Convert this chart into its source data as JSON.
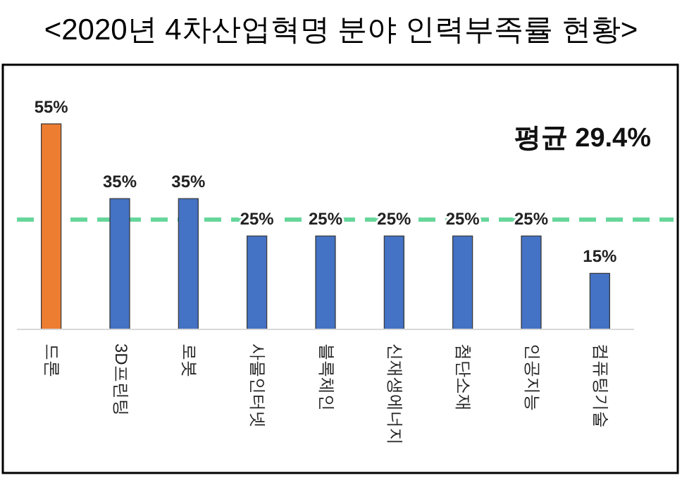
{
  "chart_data": {
    "type": "bar",
    "title": "<2020년 4차산업혁명 분야 인력부족률 현황>",
    "categories": [
      "드론",
      "3D프린팅",
      "로봇",
      "사물인터넷",
      "블록체인",
      "신재생에너지",
      "첨단소재",
      "인공지능",
      "컴퓨팅기술"
    ],
    "values": [
      55,
      35,
      35,
      25,
      25,
      25,
      25,
      25,
      15
    ],
    "colors": [
      "#ed7d31",
      "#4472c4",
      "#4472c4",
      "#4472c4",
      "#4472c4",
      "#4472c4",
      "#4472c4",
      "#4472c4",
      "#4472c4"
    ],
    "value_labels": [
      "55%",
      "35%",
      "35%",
      "25%",
      "25%",
      "25%",
      "25%",
      "25%",
      "15%"
    ],
    "ref_lines": [
      {
        "axis": "y",
        "value": 29.4,
        "label": "평균 29.4%",
        "color": "#66d69a",
        "line_style": "dashed"
      }
    ]
  }
}
